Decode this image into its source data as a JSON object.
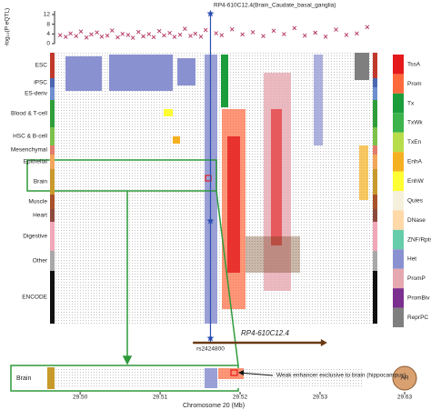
{
  "chart_data": {
    "type": "scatter",
    "title": "RP4-610C12.4(Brain_Caudate_basal_ganglia)",
    "ylabel": "-log₁₀(P eQTL)",
    "xlabel": "Chromosome 20 (Mb)",
    "marker_color": "#b03060",
    "x": [
      29.4975,
      29.4982,
      29.4988,
      29.4995,
      29.5001,
      29.5008,
      29.5014,
      29.5021,
      29.5027,
      29.5034,
      29.504,
      29.5047,
      29.5053,
      29.506,
      29.5066,
      29.5073,
      29.5079,
      29.5086,
      29.5092,
      29.5099,
      29.5105,
      29.5112,
      29.5118,
      29.5125,
      29.5131,
      29.5138,
      29.5144,
      29.5151,
      29.5157,
      29.517,
      29.5177,
      29.519,
      29.5203,
      29.5216,
      29.5229,
      29.5242,
      29.5255,
      29.5268,
      29.5281,
      29.5294,
      29.5307,
      29.532,
      29.5333,
      29.5346,
      29.5359
    ],
    "values": [
      3.5,
      2.8,
      4.2,
      3.1,
      5.0,
      2.5,
      3.8,
      4.6,
      2.9,
      3.3,
      5.4,
      2.6,
      4.0,
      3.6,
      2.4,
      4.8,
      3.0,
      3.9,
      2.7,
      5.2,
      3.4,
      4.4,
      2.8,
      3.7,
      6.1,
      3.2,
      4.1,
      2.9,
      5.6,
      4.3,
      3.5,
      5.9,
      3.8,
      4.7,
      3.1,
      5.3,
      3.9,
      6.4,
      3.3,
      4.5,
      2.9,
      5.8,
      3.6,
      4.2,
      6.8
    ],
    "snp": {
      "name": "rs2424800",
      "x": 29.5163,
      "y": 12.4,
      "color": "#2a4fb0"
    },
    "gene": {
      "name": "RP4-610C12.4",
      "start": 29.5141,
      "end": 29.5309,
      "color": "#6b3a12"
    },
    "xlim": [
      29.4968,
      29.5366
    ],
    "ylim": [
      0,
      13.5
    ],
    "yticks": [
      0,
      4,
      8,
      12
    ],
    "xticks": [
      {
        "value": 29.5,
        "label": "29.50"
      },
      {
        "value": 29.51,
        "label": "29.51"
      },
      {
        "value": 29.52,
        "label": "29.52"
      },
      {
        "value": 29.53,
        "label": "29.53"
      }
    ],
    "far_tick": {
      "value": 29.63,
      "label": "29.63",
      "gene": "AR"
    },
    "groups": [
      {
        "name": "ESC",
        "color": "#c0392b"
      },
      {
        "name": "iPSC",
        "color": "#4a67b0"
      },
      {
        "name": "ES-deriv",
        "color": "#6f8fcf"
      },
      {
        "name": "Blood & T-cell",
        "color": "#2f9e3a"
      },
      {
        "name": "HSC & B-cell",
        "color": "#7cc24a"
      },
      {
        "name": "Mesenchymal",
        "color": "#e27a6a"
      },
      {
        "name": "Epithelial",
        "color": "#f2a65a"
      },
      {
        "name": "Brain",
        "color": "#c79a2b"
      },
      {
        "name": "Muscle",
        "color": "#a9512a"
      },
      {
        "name": "Heart",
        "color": "#8c4a3c"
      },
      {
        "name": "Digestive",
        "color": "#f1a7b8"
      },
      {
        "name": "Other",
        "color": "#a8a8a8"
      },
      {
        "name": "ENCODE",
        "color": "#111111"
      }
    ],
    "states": [
      {
        "name": "TssA",
        "color": "#e41a1c"
      },
      {
        "name": "Prom",
        "color": "#ff6a3d"
      },
      {
        "name": "Tx",
        "color": "#1a9d3a"
      },
      {
        "name": "TxWk",
        "color": "#3cb44b"
      },
      {
        "name": "TxEn",
        "color": "#b8dd4a"
      },
      {
        "name": "EnhA",
        "color": "#f5b021"
      },
      {
        "name": "EnhW",
        "color": "#ffff33"
      },
      {
        "name": "Quies",
        "color": "#f4f0dc"
      },
      {
        "name": "DNase",
        "color": "#ffd9a8"
      },
      {
        "name": "ZNF/Rpts",
        "color": "#66cdaa"
      },
      {
        "name": "Het",
        "color": "#8a91d0"
      },
      {
        "name": "PromP",
        "color": "#e6a8b0"
      },
      {
        "name": "PromBiv",
        "color": "#7b2f8e"
      },
      {
        "name": "ReprPC",
        "color": "#7f7f7f"
      }
    ],
    "inset_label": "Brain",
    "annotation": "Weak enhancer exclusive to brain (hippocampus)"
  }
}
